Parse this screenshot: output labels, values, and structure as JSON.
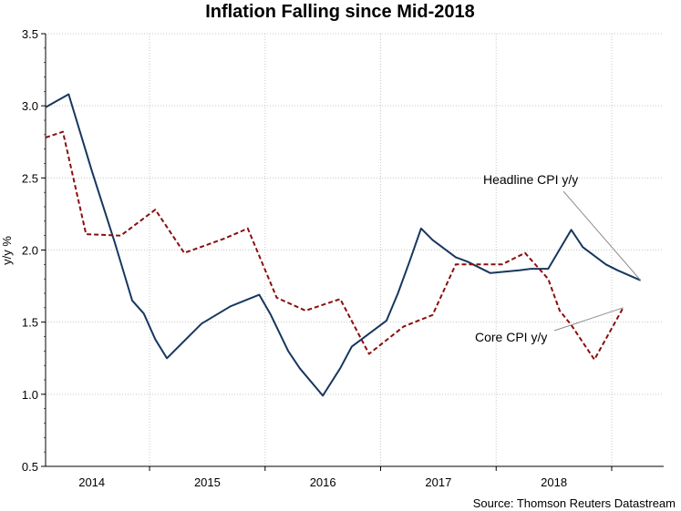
{
  "chart_data": {
    "type": "line",
    "title": "Inflation Falling since Mid-2018",
    "ylabel": "y/y %",
    "xlabel": "",
    "ylim": [
      0.5,
      3.5
    ],
    "yticks": [
      "0.5",
      "1.0",
      "1.5",
      "2.0",
      "2.5",
      "3.0",
      "3.5"
    ],
    "ytick_values": [
      0.5,
      1.0,
      1.5,
      2.0,
      2.5,
      3.0,
      3.5
    ],
    "xlim": [
      2013.6,
      2018.95
    ],
    "year_labels": [
      "2014",
      "2015",
      "2016",
      "2017",
      "2018"
    ],
    "year_label_positions": [
      2014.0,
      2015.0,
      2016.0,
      2017.0,
      2018.0
    ],
    "year_boundaries": [
      2014.5,
      2015.5,
      2016.5,
      2017.5,
      2018.5
    ],
    "gridlines": true,
    "series": [
      {
        "name": "Headline CPI y/y",
        "color": "#17375e",
        "style": "solid",
        "points": [
          [
            2013.6,
            2.99
          ],
          [
            2013.8,
            3.08
          ],
          [
            2014.0,
            2.55
          ],
          [
            2014.2,
            2.05
          ],
          [
            2014.35,
            1.65
          ],
          [
            2014.45,
            1.56
          ],
          [
            2014.55,
            1.38
          ],
          [
            2014.65,
            1.25
          ],
          [
            2014.95,
            1.49
          ],
          [
            2015.2,
            1.61
          ],
          [
            2015.45,
            1.69
          ],
          [
            2015.55,
            1.55
          ],
          [
            2015.7,
            1.3
          ],
          [
            2015.8,
            1.18
          ],
          [
            2016.0,
            0.99
          ],
          [
            2016.15,
            1.18
          ],
          [
            2016.25,
            1.33
          ],
          [
            2016.55,
            1.51
          ],
          [
            2016.65,
            1.7
          ],
          [
            2016.75,
            1.92
          ],
          [
            2016.85,
            2.15
          ],
          [
            2016.95,
            2.07
          ],
          [
            2017.15,
            1.95
          ],
          [
            2017.25,
            1.92
          ],
          [
            2017.45,
            1.84
          ],
          [
            2017.7,
            1.86
          ],
          [
            2017.8,
            1.87
          ],
          [
            2017.95,
            1.87
          ],
          [
            2018.15,
            2.14
          ],
          [
            2018.25,
            2.02
          ],
          [
            2018.45,
            1.9
          ],
          [
            2018.55,
            1.86
          ],
          [
            2018.75,
            1.79
          ]
        ]
      },
      {
        "name": "Core CPI y/y",
        "color": "#8b0e0e",
        "style": "dashed",
        "points": [
          [
            2013.6,
            2.78
          ],
          [
            2013.75,
            2.82
          ],
          [
            2013.95,
            2.11
          ],
          [
            2014.25,
            2.1
          ],
          [
            2014.45,
            2.22
          ],
          [
            2014.55,
            2.28
          ],
          [
            2014.8,
            1.98
          ],
          [
            2015.15,
            2.08
          ],
          [
            2015.35,
            2.15
          ],
          [
            2015.6,
            1.67
          ],
          [
            2015.85,
            1.58
          ],
          [
            2016.15,
            1.66
          ],
          [
            2016.4,
            1.28
          ],
          [
            2016.7,
            1.47
          ],
          [
            2016.95,
            1.55
          ],
          [
            2017.15,
            1.9
          ],
          [
            2017.35,
            1.9
          ],
          [
            2017.55,
            1.9
          ],
          [
            2017.75,
            1.98
          ],
          [
            2017.95,
            1.8
          ],
          [
            2018.05,
            1.58
          ],
          [
            2018.15,
            1.48
          ],
          [
            2018.35,
            1.24
          ],
          [
            2018.6,
            1.6
          ]
        ]
      }
    ],
    "annotations": [
      {
        "text": "Headline CPI y/y",
        "series": "Headline CPI y/y"
      },
      {
        "text": "Core CPI y/y",
        "series": "Core CPI y/y"
      }
    ],
    "source": "Source: Thomson Reuters Datastream"
  }
}
